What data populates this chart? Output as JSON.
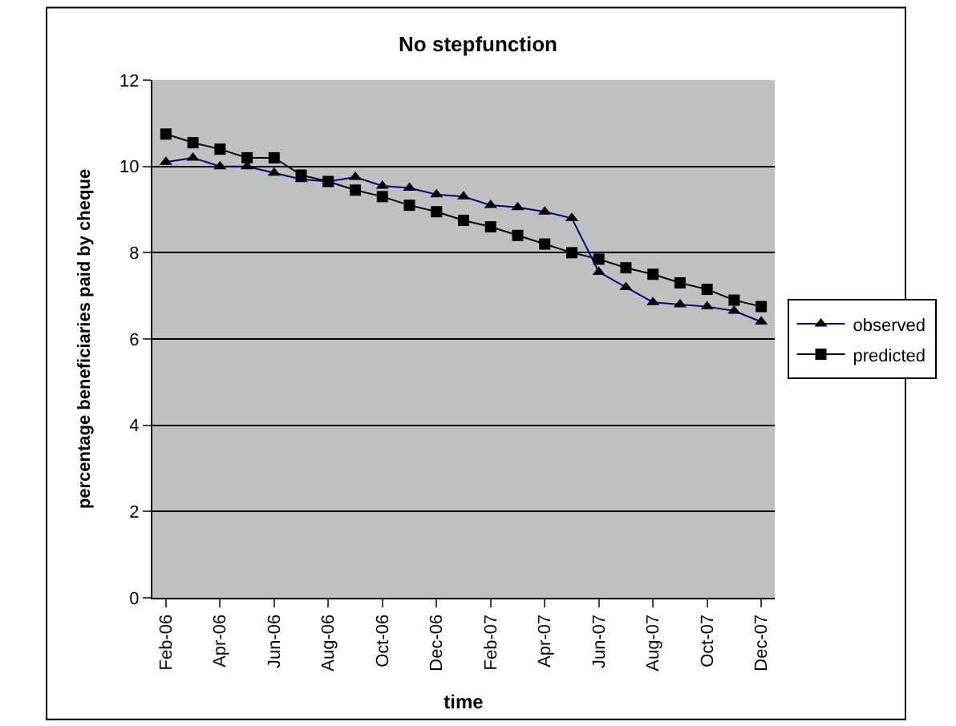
{
  "chart_data": {
    "type": "line",
    "title": "No stepfunction",
    "xlabel": "time",
    "ylabel": "percentage beneficiaries paid by cheque",
    "categories": [
      "Feb-06",
      null,
      "Apr-06",
      null,
      "Jun-06",
      null,
      "Aug-06",
      null,
      "Oct-06",
      null,
      "Dec-06",
      null,
      "Feb-07",
      null,
      "Apr-07",
      null,
      "Jun-07",
      null,
      "Aug-07",
      null,
      "Oct-07",
      null,
      "Dec-07"
    ],
    "series": [
      {
        "name": "observed",
        "color": "#000080",
        "marker": "triangle",
        "values": [
          10.1,
          10.2,
          10.0,
          10.0,
          9.85,
          9.7,
          9.65,
          9.75,
          9.55,
          9.5,
          9.35,
          9.3,
          9.1,
          9.05,
          8.95,
          8.8,
          7.55,
          7.2,
          6.85,
          6.8,
          6.75,
          6.65,
          6.4
        ]
      },
      {
        "name": "predicted",
        "color": "#000000",
        "marker": "square",
        "values": [
          10.75,
          10.55,
          10.4,
          10.2,
          10.2,
          9.8,
          9.65,
          9.45,
          9.3,
          9.1,
          8.95,
          8.75,
          8.6,
          8.4,
          8.2,
          8.0,
          7.85,
          7.65,
          7.5,
          7.3,
          7.15,
          6.9,
          6.75
        ]
      }
    ],
    "ylim": [
      0,
      12
    ],
    "yticks": [
      0,
      2,
      4,
      6,
      8,
      10,
      12
    ],
    "grid": "y",
    "legend": "right",
    "line_style": "solid"
  }
}
